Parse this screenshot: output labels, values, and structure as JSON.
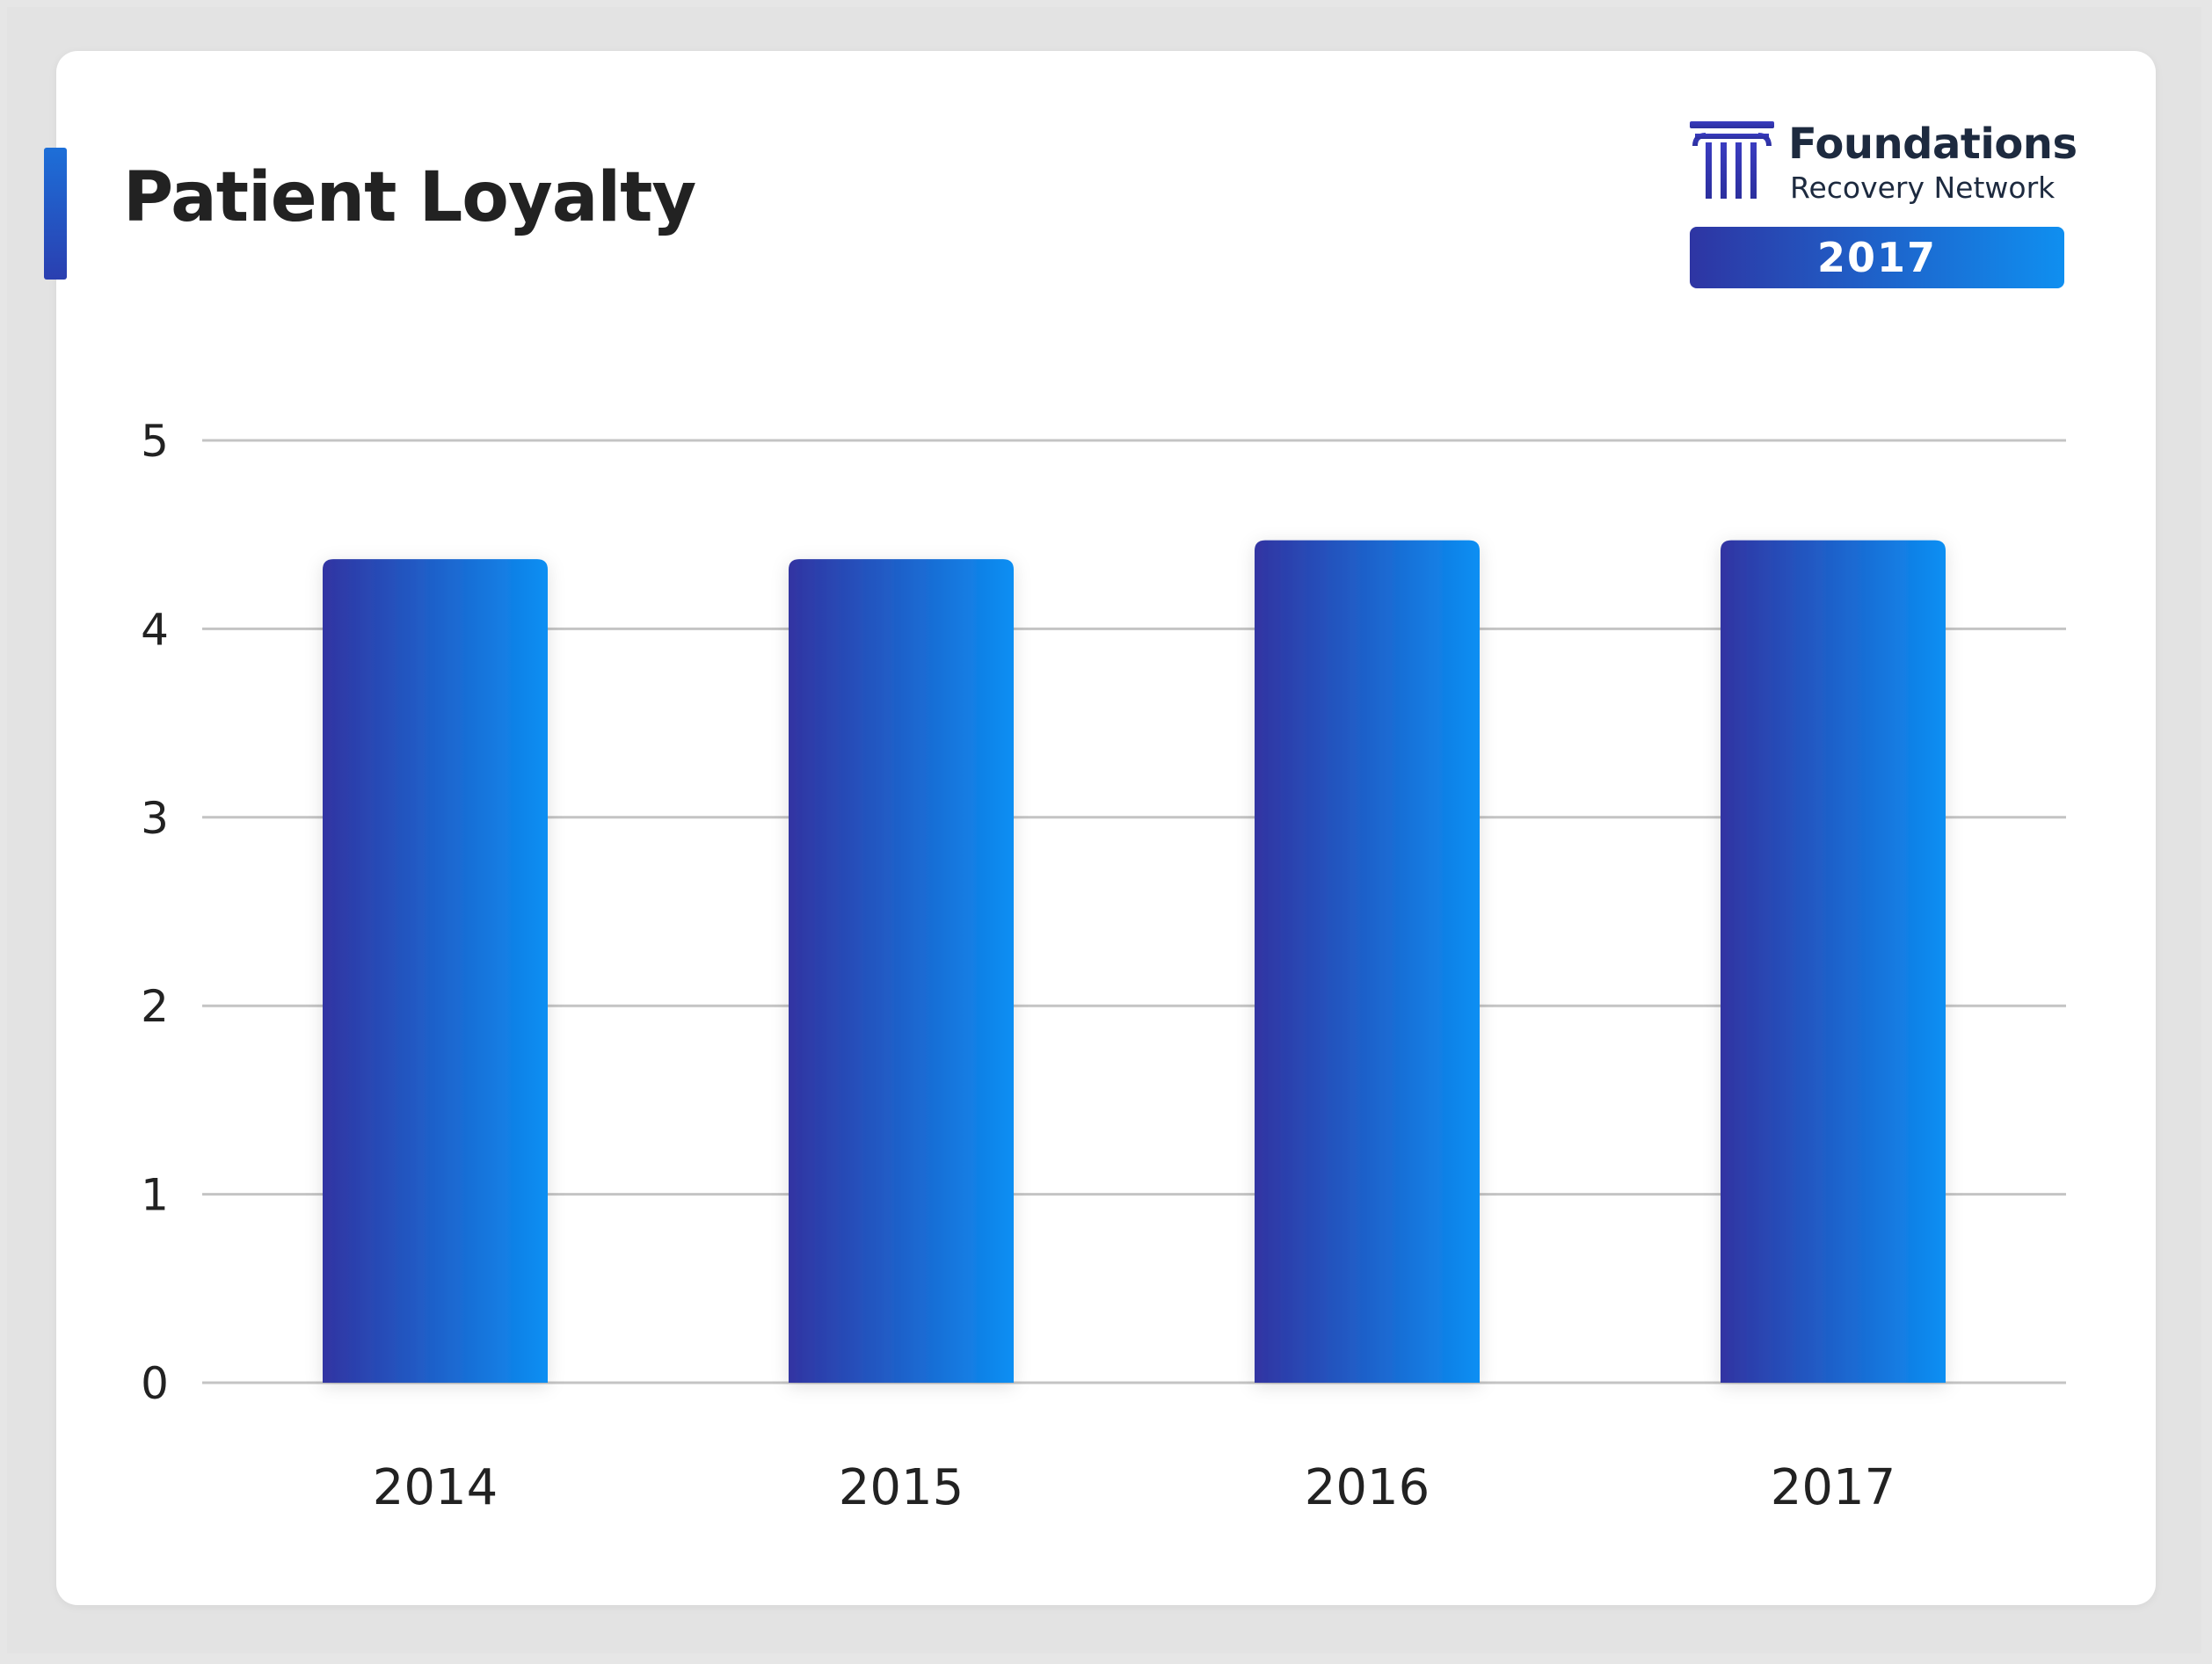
{
  "header": {
    "title": "Patient Loyalty"
  },
  "logo": {
    "name": "Foundations",
    "subtitle": "Recovery Network",
    "year": "2017"
  },
  "colors": {
    "bar_start": "#3134a2",
    "bar_end": "#0b8ff3",
    "grid": "#c4c4c4",
    "text": "#222222",
    "accent": "#1d6fd8"
  },
  "chart_data": {
    "type": "bar",
    "title": "Patient Loyalty",
    "xlabel": "",
    "ylabel": "",
    "categories": [
      "2014",
      "2015",
      "2016",
      "2017"
    ],
    "values": [
      4.37,
      4.37,
      4.47,
      4.47
    ],
    "ylim": [
      0,
      5
    ],
    "yticks": [
      0,
      1,
      2,
      3,
      4,
      5
    ],
    "grid": true,
    "legend": "none"
  }
}
